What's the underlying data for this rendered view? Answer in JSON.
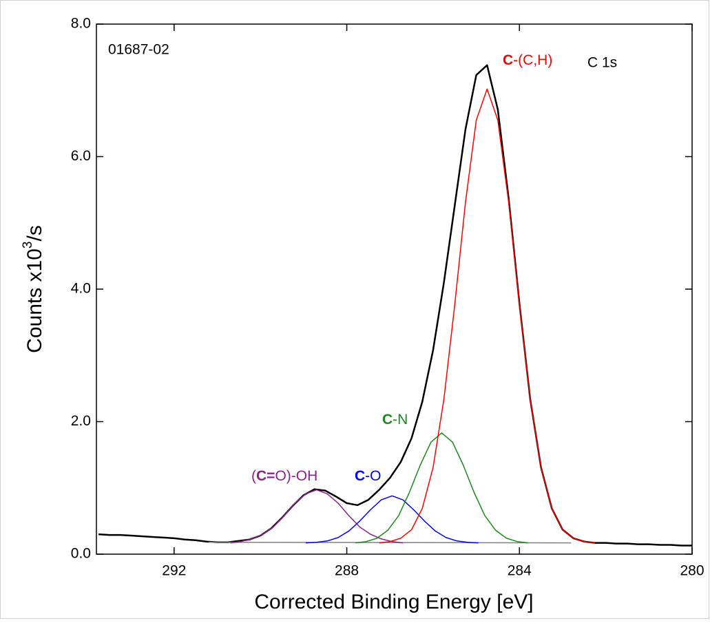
{
  "chart_data": {
    "type": "line",
    "sample_id": "01687-02",
    "region": "C 1s",
    "xlabel": "Corrected Binding Energy [eV]",
    "ylabel": {
      "text": "Counts x10",
      "sup": "3",
      "tail": "/s"
    },
    "xlim": [
      293.8,
      280
    ],
    "xticks": [
      292,
      288,
      284,
      280
    ],
    "ylim": [
      0,
      8
    ],
    "yticks": [
      {
        "value": 0,
        "label": "0.0"
      },
      {
        "value": 2,
        "label": "2.0"
      },
      {
        "value": 4,
        "label": "4.0"
      },
      {
        "value": 6,
        "label": "6.0"
      },
      {
        "value": 8,
        "label": "8.0"
      }
    ],
    "series": [
      {
        "color": "#000000",
        "width": 2.5,
        "x": [
          293.75,
          293.5,
          293.25,
          293,
          292.75,
          292.5,
          292.25,
          292,
          291.75,
          291.5,
          291.25,
          291,
          290.75,
          290.5,
          290.25,
          290,
          289.75,
          289.5,
          289.25,
          289,
          288.75,
          288.5,
          288.25,
          288,
          287.75,
          287.5,
          287.25,
          287,
          286.75,
          286.5,
          286.25,
          286,
          285.75,
          285.5,
          285.25,
          285,
          284.75,
          284.5,
          284.25,
          284,
          283.75,
          283.5,
          283.25,
          283,
          282.75,
          282.5,
          282.25,
          282,
          281.75,
          281.5,
          281.25,
          281,
          280.75,
          280.5,
          280.25,
          280
        ],
        "values": [
          0.3,
          0.29,
          0.29,
          0.28,
          0.27,
          0.26,
          0.25,
          0.24,
          0.22,
          0.21,
          0.19,
          0.18,
          0.18,
          0.2,
          0.22,
          0.28,
          0.39,
          0.55,
          0.73,
          0.89,
          0.98,
          0.96,
          0.87,
          0.77,
          0.74,
          0.82,
          0.97,
          1.15,
          1.39,
          1.75,
          2.3,
          3.08,
          4.1,
          5.26,
          6.41,
          7.23,
          7.38,
          6.71,
          5.37,
          3.78,
          2.34,
          1.31,
          0.69,
          0.37,
          0.24,
          0.19,
          0.17,
          0.17,
          0.16,
          0.16,
          0.15,
          0.15,
          0.14,
          0.14,
          0.13,
          0.13
        ]
      },
      {
        "color": "#808080",
        "width": 1.5,
        "x": [
          291.2,
          282.8
        ],
        "values": [
          0.18,
          0.17
        ]
      },
      {
        "color": "#8e1f8e",
        "width": 1.5,
        "label": [
          {
            "text": "("
          },
          {
            "text": "C=",
            "bold": true
          },
          {
            "text": "O)-OH"
          }
        ],
        "x": [
          290.7,
          290.45,
          290.2,
          289.95,
          289.7,
          289.45,
          289.2,
          288.95,
          288.7,
          288.45,
          288.2,
          287.95,
          287.7,
          287.45,
          287.2,
          286.95,
          286.7
        ],
        "values": [
          0.17,
          0.19,
          0.23,
          0.3,
          0.41,
          0.58,
          0.77,
          0.91,
          0.97,
          0.91,
          0.77,
          0.58,
          0.41,
          0.3,
          0.23,
          0.19,
          0.17
        ]
      },
      {
        "color": "#0000ff",
        "width": 1.5,
        "label": [
          {
            "text": "C",
            "bold": true
          },
          {
            "text": "-O"
          }
        ],
        "x": [
          288.95,
          288.7,
          288.45,
          288.2,
          287.95,
          287.7,
          287.45,
          287.2,
          286.95,
          286.7,
          286.45,
          286.2,
          285.95,
          285.7,
          285.45,
          285.2,
          284.95
        ],
        "values": [
          0.17,
          0.18,
          0.2,
          0.25,
          0.35,
          0.5,
          0.67,
          0.82,
          0.88,
          0.82,
          0.67,
          0.5,
          0.35,
          0.25,
          0.2,
          0.18,
          0.17
        ]
      },
      {
        "color": "#1a8a1a",
        "width": 1.5,
        "label": [
          {
            "text": "C",
            "bold": true
          },
          {
            "text": "-N"
          }
        ],
        "x": [
          287.8,
          287.55,
          287.3,
          287.05,
          286.8,
          286.55,
          286.3,
          286.05,
          285.8,
          285.55,
          285.3,
          285.05,
          284.8,
          284.55,
          284.3,
          284.05,
          283.8
        ],
        "values": [
          0.17,
          0.19,
          0.24,
          0.36,
          0.58,
          0.93,
          1.34,
          1.69,
          1.83,
          1.69,
          1.34,
          0.93,
          0.58,
          0.36,
          0.24,
          0.19,
          0.17
        ]
      },
      {
        "color": "#ff0000",
        "width": 1.5,
        "label": [
          {
            "text": "C",
            "bold": true
          },
          {
            "text": "-(C,H)"
          }
        ],
        "x": [
          287.25,
          287,
          286.75,
          286.5,
          286.25,
          286,
          285.75,
          285.5,
          285.25,
          285,
          284.75,
          284.5,
          284.25,
          284,
          283.75,
          283.5,
          283.25,
          283,
          282.75,
          282.5,
          282.25
        ],
        "values": [
          0.17,
          0.19,
          0.24,
          0.37,
          0.69,
          1.31,
          2.34,
          3.76,
          5.31,
          6.55,
          7.02,
          6.55,
          5.31,
          3.76,
          2.34,
          1.31,
          0.69,
          0.37,
          0.24,
          0.19,
          0.17
        ]
      }
    ]
  }
}
